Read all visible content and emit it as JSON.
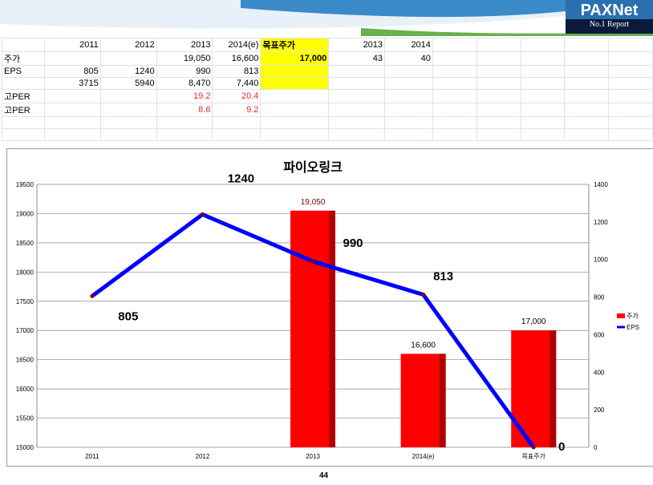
{
  "logo": {
    "brand": "PAXNet",
    "tagline": "No.1 Report"
  },
  "sheet": {
    "header": [
      "",
      "2011",
      "2012",
      "2013",
      "2014(e)",
      "목표주가",
      "2013",
      "2014"
    ],
    "rows": [
      [
        "주가",
        "",
        "",
        "19,050",
        "16,600",
        "17,000",
        "43",
        "40"
      ],
      [
        "EPS",
        "805",
        "1240",
        "990",
        "813",
        "",
        "",
        ""
      ],
      [
        "",
        "3715",
        "5940",
        "8,470",
        "7,440",
        "",
        "",
        ""
      ],
      [
        "고PER",
        "",
        "",
        "19.2",
        "20.4",
        "",
        "",
        ""
      ],
      [
        "고PER",
        "",
        "",
        "8.6",
        "9.2",
        "",
        "",
        ""
      ]
    ]
  },
  "chart_data": {
    "type": "bar",
    "title": "파이오링크",
    "categories": [
      "2011",
      "2012",
      "2013",
      "2014(e)",
      "목표주가"
    ],
    "series": [
      {
        "name": "주가",
        "type": "bar",
        "axis": "left",
        "color": "#ff0000",
        "values": [
          null,
          null,
          19050,
          16600,
          17000
        ],
        "labels": [
          "",
          "",
          "19,050",
          "16,600",
          "17,000"
        ]
      },
      {
        "name": "EPS",
        "type": "line",
        "axis": "right",
        "color": "#0000ff",
        "values": [
          805,
          1240,
          990,
          813,
          0
        ],
        "labels": [
          "805",
          "1240",
          "990",
          "813",
          "0"
        ]
      }
    ],
    "ylim_left": [
      15000,
      19500
    ],
    "yticks_left": [
      "15000",
      "15500",
      "16000",
      "16500",
      "17000",
      "17500",
      "18000",
      "18500",
      "19000",
      "19500"
    ],
    "ylim_right": [
      0,
      1400
    ],
    "yticks_right": [
      "0",
      "200",
      "400",
      "600",
      "800",
      "1000",
      "1200",
      "1400"
    ],
    "legend": "right",
    "grid": true
  },
  "page_number": "44"
}
